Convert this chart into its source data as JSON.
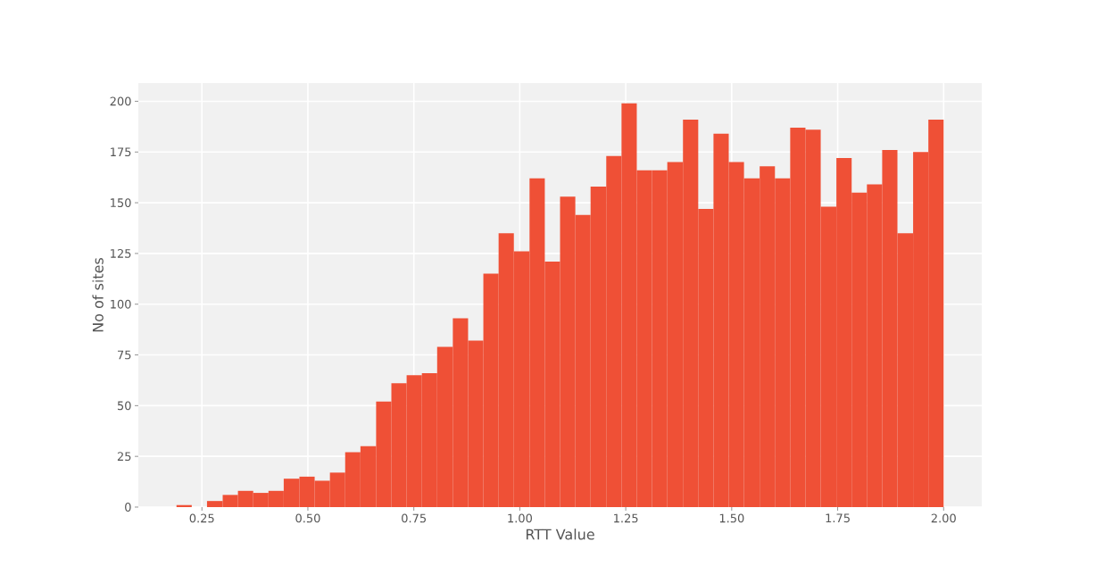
{
  "chart_data": {
    "type": "histogram",
    "xlabel": "RTT Value",
    "ylabel": "No of sites",
    "color": "#ef5036",
    "grid": true,
    "bins": [
      0.19,
      0.226,
      0.262,
      0.299,
      0.335,
      0.371,
      0.407,
      0.443,
      0.48,
      0.516,
      0.552,
      0.588,
      0.624,
      0.661,
      0.697,
      0.733,
      0.769,
      0.805,
      0.842,
      0.878,
      0.914,
      0.95,
      0.986,
      1.023,
      1.059,
      1.095,
      1.131,
      1.167,
      1.204,
      1.24,
      1.276,
      1.312,
      1.348,
      1.385,
      1.421,
      1.457,
      1.493,
      1.529,
      1.566,
      1.602,
      1.638,
      1.674,
      1.71,
      1.747,
      1.783,
      1.819,
      1.855,
      1.891,
      1.928,
      1.964,
      2.0
    ],
    "values": [
      1,
      0,
      3,
      6,
      8,
      7,
      8,
      14,
      15,
      13,
      17,
      27,
      30,
      52,
      61,
      65,
      66,
      79,
      93,
      82,
      115,
      135,
      126,
      162,
      121,
      153,
      144,
      158,
      173,
      199,
      166,
      166,
      170,
      191,
      147,
      184,
      170,
      162,
      168,
      162,
      187,
      186,
      148,
      172,
      155,
      159,
      176,
      135,
      175,
      191
    ],
    "xlim": [
      0.1,
      2.09
    ],
    "ylim": [
      0,
      209
    ],
    "xticks": [
      {
        "value": 0.25,
        "label": "0.25"
      },
      {
        "value": 0.5,
        "label": "0.50"
      },
      {
        "value": 0.75,
        "label": "0.75"
      },
      {
        "value": 1.0,
        "label": "1.00"
      },
      {
        "value": 1.25,
        "label": "1.25"
      },
      {
        "value": 1.5,
        "label": "1.50"
      },
      {
        "value": 1.75,
        "label": "1.75"
      },
      {
        "value": 2.0,
        "label": "2.00"
      }
    ],
    "yticks": [
      0,
      25,
      50,
      75,
      100,
      125,
      150,
      175,
      200
    ]
  }
}
